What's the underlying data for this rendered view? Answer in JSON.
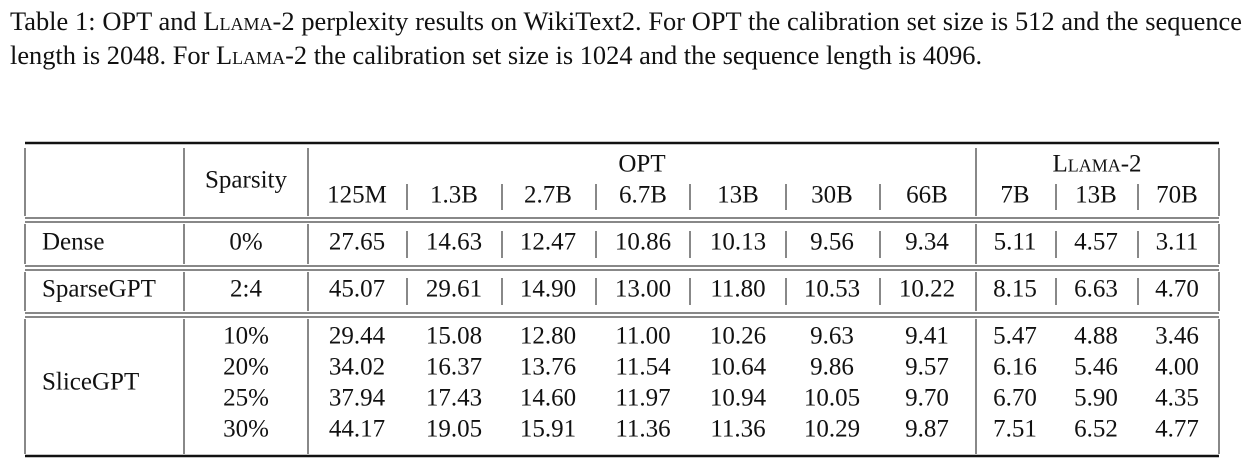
{
  "caption": [
    "Table 1: OPT and ",
    "Llama-2",
    " perplexity results on WikiText2. For OPT the calibration set size is 512 and the sequence length is 2048. For ",
    "Llama-2",
    " the calibration set size is 1024 and the sequence length is 4096."
  ],
  "table": {
    "header": {
      "sparsity": "Sparsity",
      "groups": [
        {
          "name": "OPT",
          "models": [
            "125M",
            "1.3B",
            "2.7B",
            "6.7B",
            "13B",
            "30B",
            "66B"
          ]
        },
        {
          "name": "Llama-2",
          "models": [
            "7B",
            "13B",
            "70B"
          ]
        }
      ]
    },
    "rows": [
      {
        "method": "Dense",
        "entries": [
          {
            "sparsity": "0%",
            "values": [
              "27.65",
              "14.63",
              "12.47",
              "10.86",
              "10.13",
              "9.56",
              "9.34",
              "5.11",
              "4.57",
              "3.11"
            ]
          }
        ]
      },
      {
        "method": "SparseGPT",
        "entries": [
          {
            "sparsity": "2:4",
            "values": [
              "45.07",
              "29.61",
              "14.90",
              "13.00",
              "11.80",
              "10.53",
              "10.22",
              "8.15",
              "6.63",
              "4.70"
            ]
          }
        ]
      },
      {
        "method": "SliceGPT",
        "entries": [
          {
            "sparsity": "10%",
            "values": [
              "29.44",
              "15.08",
              "12.80",
              "11.00",
              "10.26",
              "9.63",
              "9.41",
              "5.47",
              "4.88",
              "3.46"
            ]
          },
          {
            "sparsity": "20%",
            "values": [
              "34.02",
              "16.37",
              "13.76",
              "11.54",
              "10.64",
              "9.86",
              "9.57",
              "6.16",
              "5.46",
              "4.00"
            ]
          },
          {
            "sparsity": "25%",
            "values": [
              "37.94",
              "17.43",
              "14.60",
              "11.97",
              "10.94",
              "10.05",
              "9.70",
              "6.70",
              "5.90",
              "4.35"
            ]
          },
          {
            "sparsity": "30%",
            "values": [
              "44.17",
              "19.05",
              "15.91",
              "11.36",
              "11.36",
              "10.29",
              "9.87",
              "7.51",
              "6.52",
              "4.77"
            ]
          }
        ]
      }
    ]
  }
}
